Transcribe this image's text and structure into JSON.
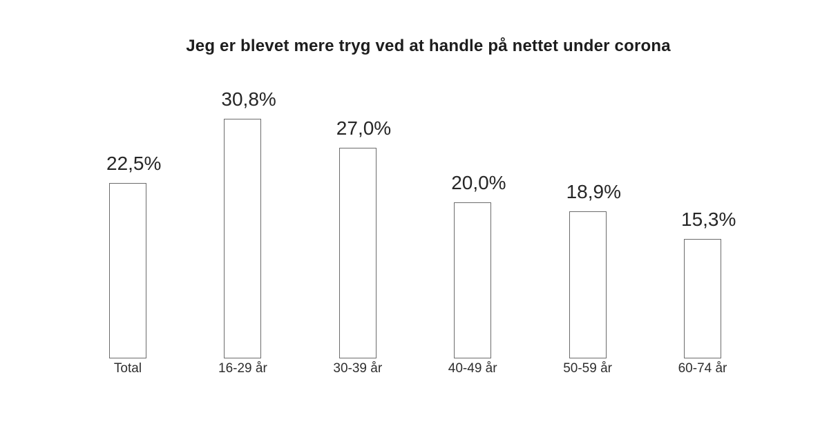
{
  "page": {
    "background": "#ffffff"
  },
  "chart_data": {
    "type": "bar",
    "title": "Jeg er blevet mere tryg ved at handle på nettet under corona",
    "categories": [
      "Total",
      "16-29 år",
      "30-39 år",
      "40-49 år",
      "50-59 år",
      "60-74 år"
    ],
    "values": [
      22.5,
      30.8,
      27.0,
      20.0,
      18.9,
      15.3
    ],
    "value_labels": [
      "22,5%",
      "30,8%",
      "27,0%",
      "20,0%",
      "18,9%",
      "15,3%"
    ],
    "unit": "%",
    "decimal_separator": ",",
    "xlabel": "",
    "ylabel": "",
    "ylim": [
      0,
      33
    ],
    "grid": false,
    "axes_visible": false,
    "legend_position": "none",
    "colors": {
      "bar_fill": "#ffffff",
      "bar_stroke": "#6b6b6b",
      "title_text": "#1d1d1d",
      "value_label_text": "#262626",
      "category_label_text": "#2e2e2e"
    }
  }
}
